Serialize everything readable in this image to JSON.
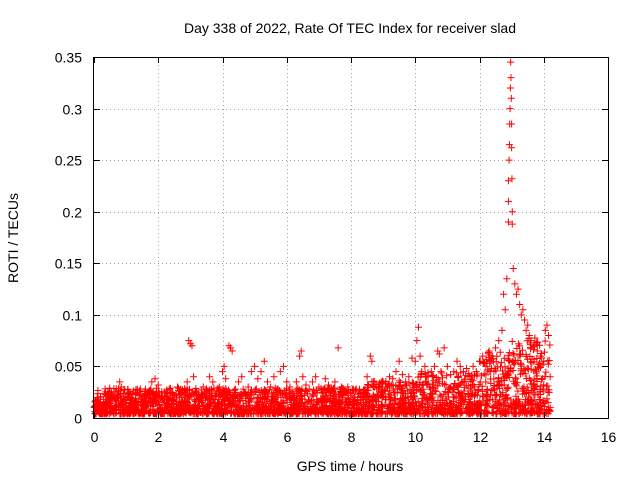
{
  "chart_data": {
    "type": "scatter",
    "title": "Day 338 of 2022, Rate Of TEC Index for receiver slad",
    "xlabel": "GPS time / hours",
    "ylabel": "ROTI / TECUs",
    "xlim": [
      0,
      16
    ],
    "ylim": [
      0,
      0.35
    ],
    "xticks": [
      0,
      2,
      4,
      6,
      8,
      10,
      12,
      14,
      16
    ],
    "xtick_labels": [
      "0",
      "2",
      "4",
      "6",
      "8",
      "10",
      "12",
      "14",
      "16"
    ],
    "yticks": [
      0,
      0.05,
      0.1,
      0.15,
      0.2,
      0.25,
      0.3,
      0.35
    ],
    "ytick_labels": [
      "0",
      "0.05",
      "0.1",
      "0.15",
      "0.2",
      "0.25",
      "0.3",
      "0.35"
    ],
    "grid": true,
    "marker": "+",
    "marker_color": "#ff0000",
    "series": [
      {
        "name": "ROTI",
        "points": [
          [
            0.05,
            0.012
          ],
          [
            0.1,
            0.02
          ],
          [
            0.15,
            0.008
          ],
          [
            0.2,
            0.015
          ],
          [
            0.3,
            0.018
          ],
          [
            0.4,
            0.01
          ],
          [
            0.5,
            0.014
          ],
          [
            0.6,
            0.02
          ],
          [
            0.7,
            0.012
          ],
          [
            0.8,
            0.035
          ],
          [
            0.85,
            0.03
          ],
          [
            0.9,
            0.016
          ],
          [
            1.0,
            0.012
          ],
          [
            1.1,
            0.02
          ],
          [
            1.2,
            0.015
          ],
          [
            1.3,
            0.01
          ],
          [
            1.4,
            0.022
          ],
          [
            1.5,
            0.018
          ],
          [
            1.6,
            0.028
          ],
          [
            1.7,
            0.025
          ],
          [
            1.8,
            0.035
          ],
          [
            1.9,
            0.038
          ],
          [
            2.0,
            0.032
          ],
          [
            2.1,
            0.02
          ],
          [
            2.2,
            0.015
          ],
          [
            2.3,
            0.018
          ],
          [
            2.4,
            0.025
          ],
          [
            2.5,
            0.022
          ],
          [
            2.6,
            0.03
          ],
          [
            2.7,
            0.028
          ],
          [
            2.8,
            0.025
          ],
          [
            2.9,
            0.035
          ],
          [
            2.95,
            0.075
          ],
          [
            3.0,
            0.072
          ],
          [
            3.05,
            0.07
          ],
          [
            3.1,
            0.04
          ],
          [
            3.2,
            0.025
          ],
          [
            3.3,
            0.02
          ],
          [
            3.4,
            0.03
          ],
          [
            3.5,
            0.028
          ],
          [
            3.6,
            0.04
          ],
          [
            3.7,
            0.035
          ],
          [
            3.8,
            0.022
          ],
          [
            3.9,
            0.03
          ],
          [
            4.0,
            0.045
          ],
          [
            4.05,
            0.05
          ],
          [
            4.1,
            0.038
          ],
          [
            4.2,
            0.07
          ],
          [
            4.25,
            0.068
          ],
          [
            4.3,
            0.065
          ],
          [
            4.4,
            0.028
          ],
          [
            4.5,
            0.035
          ],
          [
            4.6,
            0.04
          ],
          [
            4.7,
            0.025
          ],
          [
            4.8,
            0.03
          ],
          [
            4.9,
            0.045
          ],
          [
            5.0,
            0.05
          ],
          [
            5.1,
            0.038
          ],
          [
            5.2,
            0.045
          ],
          [
            5.3,
            0.055
          ],
          [
            5.4,
            0.035
          ],
          [
            5.5,
            0.03
          ],
          [
            5.6,
            0.04
          ],
          [
            5.7,
            0.028
          ],
          [
            5.8,
            0.045
          ],
          [
            5.9,
            0.05
          ],
          [
            6.0,
            0.035
          ],
          [
            6.1,
            0.03
          ],
          [
            6.2,
            0.022
          ],
          [
            6.3,
            0.035
          ],
          [
            6.4,
            0.06
          ],
          [
            6.45,
            0.065
          ],
          [
            6.5,
            0.04
          ],
          [
            6.6,
            0.032
          ],
          [
            6.7,
            0.028
          ],
          [
            6.8,
            0.035
          ],
          [
            6.9,
            0.04
          ],
          [
            7.0,
            0.03
          ],
          [
            7.1,
            0.025
          ],
          [
            7.2,
            0.038
          ],
          [
            7.3,
            0.032
          ],
          [
            7.4,
            0.028
          ],
          [
            7.5,
            0.035
          ],
          [
            7.6,
            0.068
          ],
          [
            7.7,
            0.03
          ],
          [
            7.8,
            0.025
          ],
          [
            7.9,
            0.03
          ],
          [
            8.0,
            0.022
          ],
          [
            8.1,
            0.02
          ],
          [
            8.2,
            0.018
          ],
          [
            8.3,
            0.015
          ],
          [
            8.4,
            0.025
          ],
          [
            8.5,
            0.04
          ],
          [
            8.6,
            0.06
          ],
          [
            8.65,
            0.055
          ],
          [
            8.7,
            0.035
          ],
          [
            8.8,
            0.028
          ],
          [
            8.9,
            0.03
          ],
          [
            9.0,
            0.035
          ],
          [
            9.1,
            0.03
          ],
          [
            9.2,
            0.04
          ],
          [
            9.3,
            0.038
          ],
          [
            9.4,
            0.045
          ],
          [
            9.5,
            0.055
          ],
          [
            9.6,
            0.042
          ],
          [
            9.7,
            0.035
          ],
          [
            9.8,
            0.04
          ],
          [
            9.9,
            0.058
          ],
          [
            10.0,
            0.055
          ],
          [
            10.05,
            0.075
          ],
          [
            10.1,
            0.088
          ],
          [
            10.15,
            0.06
          ],
          [
            10.2,
            0.045
          ],
          [
            10.3,
            0.05
          ],
          [
            10.4,
            0.04
          ],
          [
            10.5,
            0.045
          ],
          [
            10.6,
            0.05
          ],
          [
            10.7,
            0.065
          ],
          [
            10.75,
            0.062
          ],
          [
            10.8,
            0.045
          ],
          [
            10.9,
            0.068
          ],
          [
            11.0,
            0.05
          ],
          [
            11.1,
            0.042
          ],
          [
            11.2,
            0.045
          ],
          [
            11.3,
            0.055
          ],
          [
            11.4,
            0.05
          ],
          [
            11.5,
            0.045
          ],
          [
            11.6,
            0.048
          ],
          [
            11.7,
            0.04
          ],
          [
            11.8,
            0.05
          ],
          [
            11.9,
            0.045
          ],
          [
            12.0,
            0.055
          ],
          [
            12.1,
            0.06
          ],
          [
            12.2,
            0.05
          ],
          [
            12.3,
            0.065
          ],
          [
            12.4,
            0.06
          ],
          [
            12.5,
            0.068
          ],
          [
            12.6,
            0.075
          ],
          [
            12.7,
            0.085
          ],
          [
            12.75,
            0.12
          ],
          [
            12.8,
            0.105
          ],
          [
            12.85,
            0.135
          ],
          [
            12.9,
            0.19
          ],
          [
            12.9,
            0.21
          ],
          [
            12.9,
            0.23
          ],
          [
            12.92,
            0.25
          ],
          [
            12.93,
            0.265
          ],
          [
            12.94,
            0.285
          ],
          [
            12.95,
            0.3
          ],
          [
            12.96,
            0.32
          ],
          [
            12.97,
            0.345
          ],
          [
            12.98,
            0.33
          ],
          [
            12.99,
            0.31
          ],
          [
            13.0,
            0.285
          ],
          [
            13.0,
            0.262
          ],
          [
            13.01,
            0.232
          ],
          [
            13.02,
            0.2
          ],
          [
            13.02,
            0.188
          ],
          [
            13.05,
            0.145
          ],
          [
            13.1,
            0.13
          ],
          [
            13.15,
            0.12
          ],
          [
            13.2,
            0.125
          ],
          [
            13.25,
            0.11
          ],
          [
            13.3,
            0.1
          ],
          [
            13.35,
            0.105
          ],
          [
            13.4,
            0.095
          ],
          [
            13.45,
            0.085
          ],
          [
            13.5,
            0.09
          ],
          [
            13.55,
            0.08
          ],
          [
            13.6,
            0.075
          ],
          [
            13.7,
            0.07
          ],
          [
            13.8,
            0.065
          ],
          [
            13.9,
            0.06
          ],
          [
            14.0,
            0.055
          ],
          [
            14.05,
            0.085
          ],
          [
            14.1,
            0.09
          ],
          [
            14.15,
            0.08
          ],
          [
            14.2,
            0.04
          ],
          [
            14.2,
            0.01
          ]
        ]
      }
    ],
    "noise_note": "dense band of crosses between roughly 0.005 and 0.04 across 0-14.2 h"
  }
}
